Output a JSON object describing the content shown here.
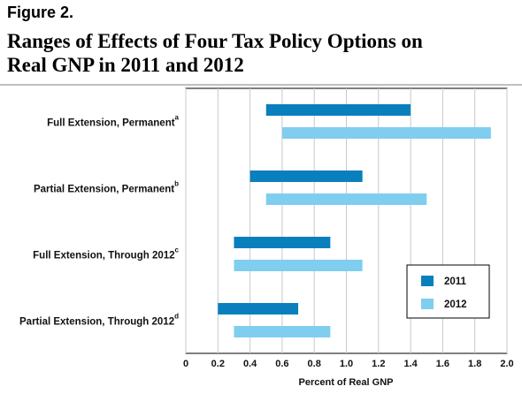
{
  "chart_data": {
    "type": "range-bar",
    "figure_label": "Figure 2.",
    "title": "Ranges of Effects of Four Tax Policy Options on Real GNP in 2011 and 2012",
    "x_label": "Percent of Real GNP",
    "categories": [
      "Full Extension, Permanent",
      "Partial Extension, Permanent",
      "Full Extension, Through 2012",
      "Partial Extension, Through 2012"
    ],
    "category_notes": [
      "a",
      "b",
      "c",
      "d"
    ],
    "series": [
      {
        "name": "2011",
        "color": "#0a7fbd",
        "low": [
          0.5,
          0.4,
          0.3,
          0.2
        ],
        "high": [
          1.4,
          1.1,
          0.9,
          0.7
        ]
      },
      {
        "name": "2012",
        "color": "#7fcdef",
        "low": [
          0.6,
          0.5,
          0.3,
          0.3
        ],
        "high": [
          1.9,
          1.5,
          1.1,
          0.9
        ]
      }
    ],
    "xlim": [
      0,
      2
    ],
    "xticks": [
      0,
      0.2,
      0.4,
      0.6,
      0.8,
      {
        "value": 1,
        "label": "1.0"
      },
      1.2,
      1.4,
      1.6,
      1.8,
      {
        "value": 2,
        "label": "2.0"
      }
    ],
    "grid": true,
    "legend": "lower right"
  }
}
